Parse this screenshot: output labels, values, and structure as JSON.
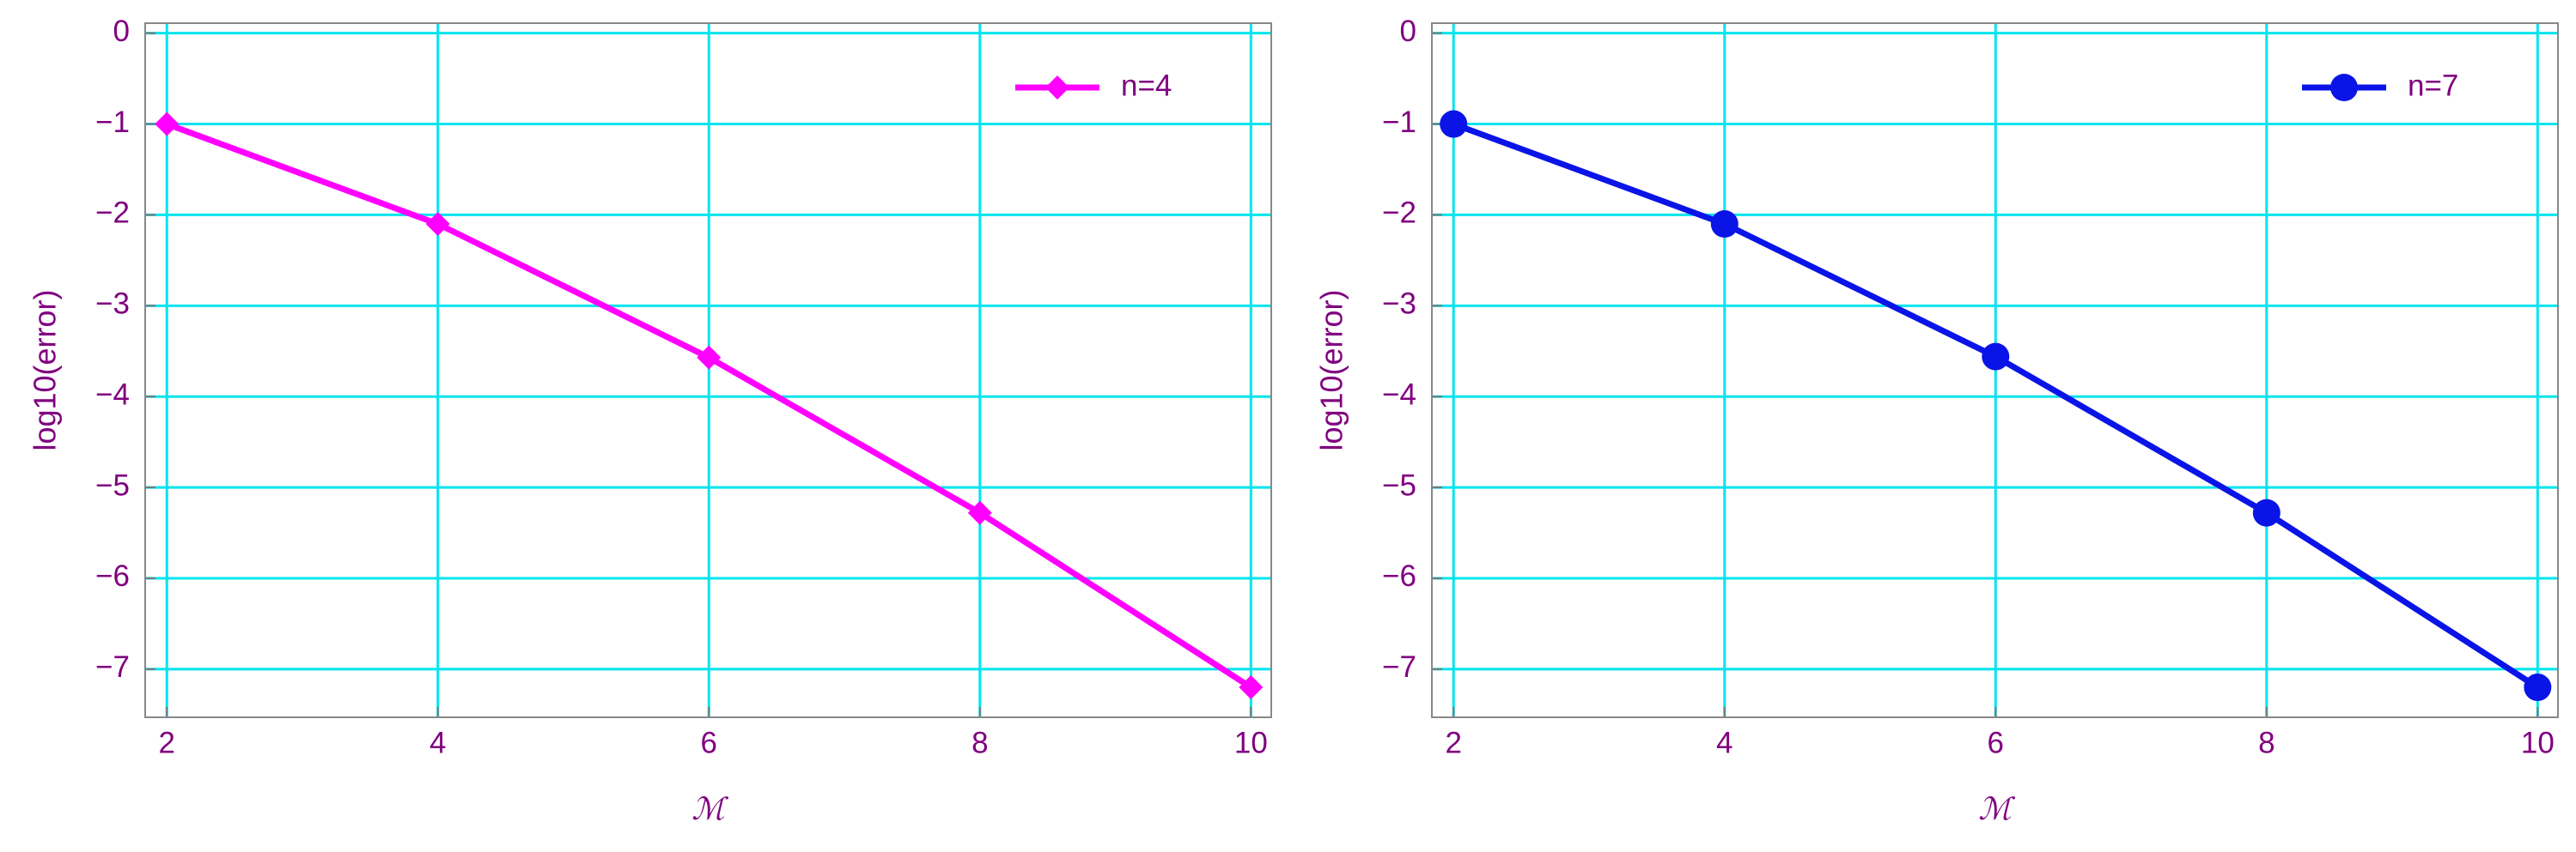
{
  "chart_data": [
    {
      "type": "line",
      "xlabel": "ℳ",
      "ylabel": "log10(error)",
      "x": [
        2,
        4,
        6,
        8,
        10
      ],
      "series": [
        {
          "name": "n=4",
          "color": "#ff00ff",
          "marker": "diamond",
          "values": [
            -1,
            -2.1,
            -3.57,
            -5.28,
            -7.2
          ]
        }
      ],
      "xlim": [
        1.84,
        10.15
      ],
      "ylim": [
        -7.53,
        0.11
      ],
      "xticks": [
        2,
        4,
        6,
        8,
        10
      ],
      "yticks": [
        0,
        {
          "value": -1,
          "label": "−1"
        },
        {
          "value": -2,
          "label": "−2"
        },
        {
          "value": -3,
          "label": "−3"
        },
        {
          "value": -4,
          "label": "−4"
        },
        {
          "value": -5,
          "label": "−5"
        },
        {
          "value": -6,
          "label": "−6"
        },
        {
          "value": -7,
          "label": "−7"
        }
      ],
      "grid": true,
      "grid_color": "#00e5ee",
      "legend": "upper right"
    },
    {
      "type": "line",
      "xlabel": "ℳ",
      "ylabel": "log10(error)",
      "x": [
        2,
        4,
        6,
        8,
        10
      ],
      "series": [
        {
          "name": "n=7",
          "color": "#0a14e6",
          "marker": "circle",
          "values": [
            -1,
            -2.1,
            -3.56,
            -5.28,
            -7.2
          ]
        }
      ],
      "xlim": [
        1.84,
        10.15
      ],
      "ylim": [
        -7.53,
        0.11
      ],
      "xticks": [
        2,
        4,
        6,
        8,
        10
      ],
      "yticks": [
        0,
        {
          "value": -1,
          "label": "−1"
        },
        {
          "value": -2,
          "label": "−2"
        },
        {
          "value": -3,
          "label": "−3"
        },
        {
          "value": -4,
          "label": "−4"
        },
        {
          "value": -5,
          "label": "−5"
        },
        {
          "value": -6,
          "label": "−6"
        },
        {
          "value": -7,
          "label": "−7"
        }
      ],
      "grid": true,
      "grid_color": "#00e5ee",
      "legend": "upper right"
    }
  ]
}
